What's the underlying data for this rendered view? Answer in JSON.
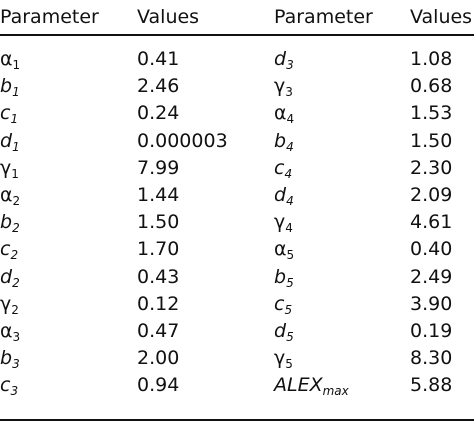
{
  "headers": [
    "Parameter",
    "Values",
    "Parameter",
    "Values"
  ],
  "rows": [
    {
      "left": {
        "base": "α",
        "sub": "1",
        "greek": true,
        "subItalic": false,
        "value": "0.41"
      },
      "right": {
        "base": "d",
        "sub": "3",
        "greek": false,
        "subItalic": false,
        "value": "1.08"
      }
    },
    {
      "left": {
        "base": "b",
        "sub": "1",
        "greek": false,
        "subItalic": false,
        "value": "2.46"
      },
      "right": {
        "base": "γ",
        "sub": "3",
        "greek": true,
        "subItalic": false,
        "value": "0.68"
      }
    },
    {
      "left": {
        "base": "c",
        "sub": "1",
        "greek": false,
        "subItalic": false,
        "value": "0.24"
      },
      "right": {
        "base": "α",
        "sub": "4",
        "greek": true,
        "subItalic": false,
        "value": "1.53"
      }
    },
    {
      "left": {
        "base": "d",
        "sub": "1",
        "greek": false,
        "subItalic": false,
        "value": "0.000003"
      },
      "right": {
        "base": "b",
        "sub": "4",
        "greek": false,
        "subItalic": false,
        "value": "1.50"
      }
    },
    {
      "left": {
        "base": "γ",
        "sub": "1",
        "greek": true,
        "subItalic": false,
        "value": "7.99"
      },
      "right": {
        "base": "c",
        "sub": "4",
        "greek": false,
        "subItalic": false,
        "value": "2.30"
      }
    },
    {
      "left": {
        "base": "α",
        "sub": "2",
        "greek": true,
        "subItalic": false,
        "value": "1.44"
      },
      "right": {
        "base": "d",
        "sub": "4",
        "greek": false,
        "subItalic": false,
        "value": "2.09"
      }
    },
    {
      "left": {
        "base": "b",
        "sub": "2",
        "greek": false,
        "subItalic": false,
        "value": "1.50"
      },
      "right": {
        "base": "γ",
        "sub": "4",
        "greek": true,
        "subItalic": false,
        "value": "4.61"
      }
    },
    {
      "left": {
        "base": "c",
        "sub": "2",
        "greek": false,
        "subItalic": false,
        "value": "1.70"
      },
      "right": {
        "base": "α",
        "sub": "5",
        "greek": true,
        "subItalic": false,
        "value": "0.40"
      }
    },
    {
      "left": {
        "base": "d",
        "sub": "2",
        "greek": false,
        "subItalic": false,
        "value": "0.43"
      },
      "right": {
        "base": "b",
        "sub": "5",
        "greek": false,
        "subItalic": false,
        "value": "2.49"
      }
    },
    {
      "left": {
        "base": "γ",
        "sub": "2",
        "greek": true,
        "subItalic": false,
        "value": "0.12"
      },
      "right": {
        "base": "c",
        "sub": "5",
        "greek": false,
        "subItalic": false,
        "value": "3.90"
      }
    },
    {
      "left": {
        "base": "α",
        "sub": "3",
        "greek": true,
        "subItalic": false,
        "value": "0.47"
      },
      "right": {
        "base": "d",
        "sub": "5",
        "greek": false,
        "subItalic": false,
        "value": "0.19"
      }
    },
    {
      "left": {
        "base": "b",
        "sub": "3",
        "greek": false,
        "subItalic": false,
        "value": "2.00"
      },
      "right": {
        "base": "γ",
        "sub": "5",
        "greek": true,
        "subItalic": false,
        "value": "8.30"
      }
    },
    {
      "left": {
        "base": "c",
        "sub": "3",
        "greek": false,
        "subItalic": false,
        "value": "0.94"
      },
      "right": {
        "base": "ALEX",
        "sub": "max",
        "greek": false,
        "subItalic": true,
        "value": "5.88"
      }
    }
  ]
}
